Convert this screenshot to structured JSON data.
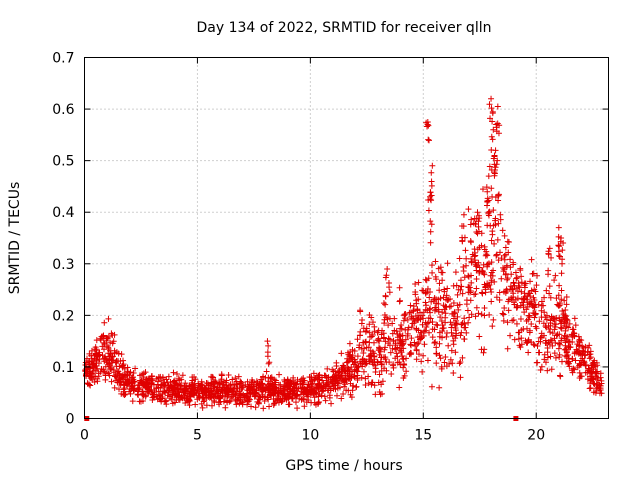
{
  "chart_data": {
    "type": "scatter",
    "title": "Day 134 of 2022, SRMTID for receiver qlln",
    "xlabel": "GPS time / hours",
    "ylabel": "SRMTID / TECUs",
    "xlim": [
      0,
      23.2
    ],
    "ylim": [
      0,
      0.7
    ],
    "xticks": [
      0,
      5,
      10,
      15,
      20
    ],
    "yticks": [
      0,
      0.1,
      0.2,
      0.3,
      0.4,
      0.5,
      0.6,
      0.7
    ],
    "xtick_labels": [
      "0",
      "5",
      "10",
      "15",
      "20"
    ],
    "ytick_labels": [
      "0",
      "0.1",
      "0.2",
      "0.3",
      "0.4",
      "0.5",
      "0.6",
      "0.7"
    ],
    "grid": true,
    "marker": "plus",
    "color": "#e00000",
    "series": [
      {
        "name": "SRMTID",
        "trend": {
          "x": [
            0.0,
            0.5,
            1.0,
            1.5,
            2.0,
            3.0,
            4.0,
            5.0,
            6.0,
            7.0,
            8.0,
            9.0,
            10.0,
            11.0,
            12.0,
            12.5,
            13.0,
            13.5,
            14.0,
            14.5,
            15.0,
            15.3,
            15.6,
            16.0,
            16.5,
            17.0,
            17.5,
            18.0,
            18.3,
            18.6,
            19.0,
            19.5,
            20.0,
            20.5,
            21.0,
            21.5,
            22.0,
            22.5,
            22.9
          ],
          "y": [
            0.09,
            0.11,
            0.13,
            0.09,
            0.07,
            0.06,
            0.055,
            0.05,
            0.055,
            0.05,
            0.055,
            0.055,
            0.055,
            0.07,
            0.1,
            0.13,
            0.12,
            0.15,
            0.16,
            0.17,
            0.18,
            0.24,
            0.2,
            0.18,
            0.17,
            0.25,
            0.28,
            0.33,
            0.35,
            0.27,
            0.24,
            0.21,
            0.2,
            0.16,
            0.2,
            0.15,
            0.12,
            0.09,
            0.06
          ]
        },
        "spread": [
          0.02,
          0.03,
          0.04,
          0.03,
          0.025,
          0.02,
          0.02,
          0.02,
          0.02,
          0.02,
          0.02,
          0.02,
          0.02,
          0.025,
          0.04,
          0.05,
          0.05,
          0.06,
          0.06,
          0.06,
          0.07,
          0.12,
          0.08,
          0.07,
          0.08,
          0.09,
          0.1,
          0.12,
          0.12,
          0.08,
          0.07,
          0.06,
          0.07,
          0.06,
          0.07,
          0.05,
          0.04,
          0.03,
          0.02
        ],
        "peaks": [
          {
            "x": 13.4,
            "y": 0.29
          },
          {
            "x": 15.2,
            "y": 0.575
          },
          {
            "x": 15.4,
            "y": 0.49
          },
          {
            "x": 15.3,
            "y": 0.43
          },
          {
            "x": 16.8,
            "y": 0.395
          },
          {
            "x": 17.4,
            "y": 0.4
          },
          {
            "x": 18.0,
            "y": 0.62
          },
          {
            "x": 18.3,
            "y": 0.605
          },
          {
            "x": 18.1,
            "y": 0.56
          },
          {
            "x": 18.2,
            "y": 0.52
          },
          {
            "x": 17.9,
            "y": 0.47
          },
          {
            "x": 21.0,
            "y": 0.37
          },
          {
            "x": 21.1,
            "y": 0.35
          },
          {
            "x": 20.6,
            "y": 0.33
          },
          {
            "x": 8.1,
            "y": 0.15
          },
          {
            "x": 12.2,
            "y": 0.21
          }
        ],
        "zero_points": [
          {
            "x": 0.1,
            "y": 0.0
          },
          {
            "x": 19.1,
            "y": 0.0
          }
        ]
      }
    ]
  }
}
